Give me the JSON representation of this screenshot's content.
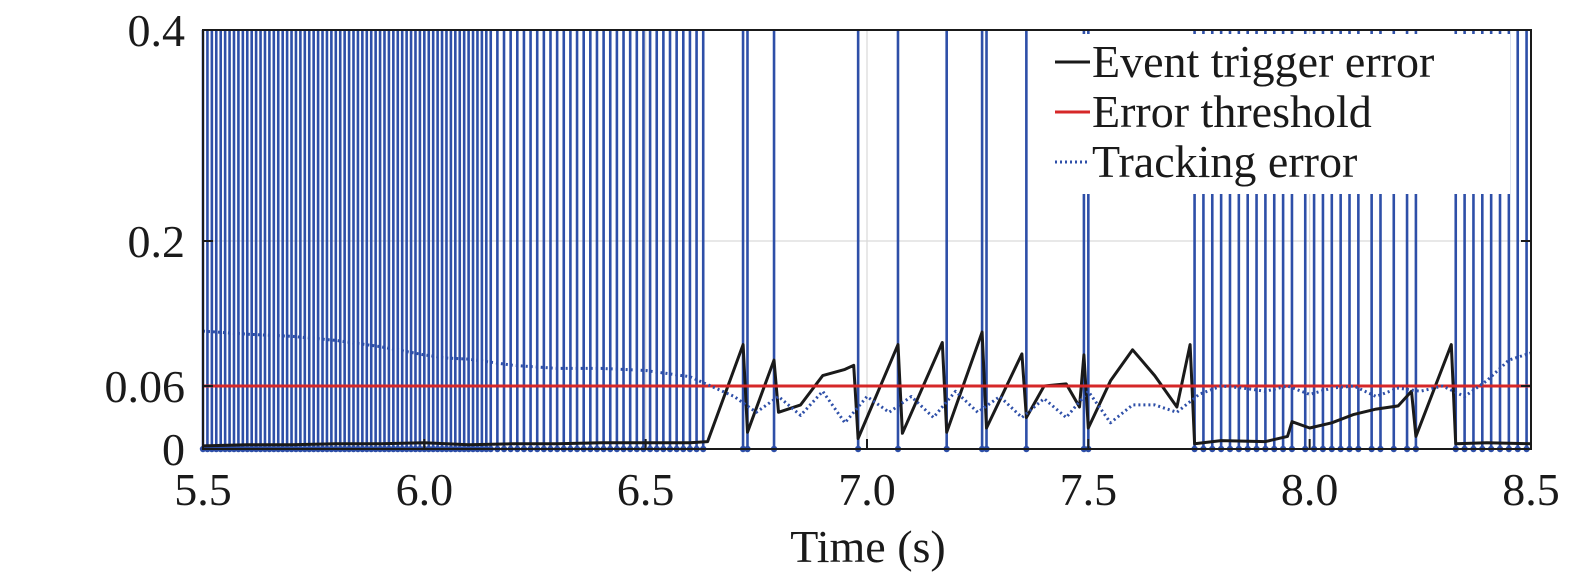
{
  "chart_data": {
    "type": "line",
    "title": "",
    "xlabel": "Time (s)",
    "ylabel": "",
    "xlim": [
      5.5,
      8.5
    ],
    "ylim": [
      0,
      0.4
    ],
    "x_ticks": [
      5.5,
      6.0,
      6.5,
      7.0,
      7.5,
      8.0,
      8.5
    ],
    "x_tick_labels": [
      "5.5",
      "6.0",
      "6.5",
      "7.0",
      "7.5",
      "8.0",
      "8.5"
    ],
    "y_ticks": [
      0,
      0.06,
      0.2,
      0.4
    ],
    "y_tick_labels": [
      "0",
      "0.06",
      "0.2",
      "0.4"
    ],
    "y_scale": "piecewise-linear",
    "grid": true,
    "legend": {
      "position": "top-right",
      "entries": [
        "Event trigger error",
        "Error threshold",
        "Tracking error"
      ]
    },
    "series": [
      {
        "name": "Event trigger error",
        "color": "#1a1a1a",
        "style": "solid",
        "x": [
          5.5,
          5.6,
          5.7,
          5.8,
          5.9,
          6.0,
          6.1,
          6.2,
          6.3,
          6.4,
          6.5,
          6.6,
          6.64,
          6.72,
          6.73,
          6.79,
          6.8,
          6.85,
          6.9,
          6.95,
          6.97,
          6.98,
          7.07,
          7.08,
          7.17,
          7.18,
          7.26,
          7.27,
          7.35,
          7.36,
          7.4,
          7.45,
          7.48,
          7.49,
          7.5,
          7.55,
          7.6,
          7.65,
          7.7,
          7.73,
          7.74,
          7.8,
          7.9,
          7.95,
          7.96,
          8.0,
          8.05,
          8.1,
          8.15,
          8.2,
          8.23,
          8.24,
          8.32,
          8.33,
          8.4,
          8.5
        ],
        "y": [
          0.003,
          0.004,
          0.004,
          0.005,
          0.005,
          0.006,
          0.004,
          0.005,
          0.005,
          0.006,
          0.006,
          0.006,
          0.007,
          0.1,
          0.016,
          0.085,
          0.035,
          0.042,
          0.07,
          0.076,
          0.08,
          0.01,
          0.1,
          0.015,
          0.102,
          0.016,
          0.112,
          0.02,
          0.091,
          0.03,
          0.06,
          0.062,
          0.04,
          0.09,
          0.02,
          0.065,
          0.095,
          0.07,
          0.04,
          0.1,
          0.005,
          0.008,
          0.007,
          0.012,
          0.026,
          0.02,
          0.025,
          0.033,
          0.038,
          0.041,
          0.055,
          0.012,
          0.1,
          0.005,
          0.006,
          0.005
        ]
      },
      {
        "name": "Error threshold",
        "color": "#d62728",
        "style": "solid",
        "x": [
          5.5,
          8.5
        ],
        "y": [
          0.06,
          0.06
        ]
      },
      {
        "name": "Tracking error",
        "color": "#2e4fa8",
        "style": "dotted",
        "x": [
          5.5,
          5.6,
          5.7,
          5.8,
          5.9,
          6.0,
          6.05,
          6.1,
          6.2,
          6.3,
          6.4,
          6.5,
          6.6,
          6.7,
          6.75,
          6.8,
          6.85,
          6.9,
          6.95,
          7.0,
          7.05,
          7.1,
          7.15,
          7.2,
          7.25,
          7.3,
          7.35,
          7.4,
          7.45,
          7.5,
          7.55,
          7.6,
          7.65,
          7.7,
          7.75,
          7.8,
          7.85,
          7.9,
          7.95,
          8.0,
          8.05,
          8.1,
          8.15,
          8.2,
          8.25,
          8.3,
          8.35,
          8.4,
          8.45,
          8.5
        ],
        "y": [
          0.113,
          0.11,
          0.108,
          0.104,
          0.098,
          0.09,
          0.087,
          0.086,
          0.08,
          0.077,
          0.077,
          0.075,
          0.069,
          0.05,
          0.035,
          0.05,
          0.032,
          0.055,
          0.025,
          0.05,
          0.035,
          0.05,
          0.03,
          0.055,
          0.035,
          0.05,
          0.03,
          0.048,
          0.03,
          0.055,
          0.025,
          0.042,
          0.042,
          0.035,
          0.052,
          0.06,
          0.058,
          0.055,
          0.06,
          0.052,
          0.058,
          0.06,
          0.05,
          0.058,
          0.055,
          0.06,
          0.05,
          0.065,
          0.085,
          0.092
        ]
      }
    ],
    "event_markers": {
      "color": "#2e4fa8",
      "x": [
        5.5,
        5.51,
        5.52,
        5.53,
        5.54,
        5.55,
        5.56,
        5.57,
        5.58,
        5.59,
        5.6,
        5.61,
        5.62,
        5.63,
        5.64,
        5.65,
        5.66,
        5.67,
        5.68,
        5.69,
        5.7,
        5.71,
        5.72,
        5.73,
        5.74,
        5.75,
        5.76,
        5.77,
        5.78,
        5.79,
        5.8,
        5.81,
        5.82,
        5.83,
        5.84,
        5.85,
        5.86,
        5.87,
        5.88,
        5.89,
        5.9,
        5.91,
        5.92,
        5.93,
        5.94,
        5.95,
        5.96,
        5.97,
        5.98,
        5.99,
        6.0,
        6.01,
        6.02,
        6.03,
        6.04,
        6.05,
        6.06,
        6.07,
        6.08,
        6.09,
        6.1,
        6.11,
        6.12,
        6.13,
        6.14,
        6.15,
        6.165,
        6.18,
        6.195,
        6.21,
        6.225,
        6.24,
        6.255,
        6.27,
        6.285,
        6.3,
        6.315,
        6.33,
        6.345,
        6.36,
        6.375,
        6.39,
        6.405,
        6.42,
        6.435,
        6.45,
        6.465,
        6.48,
        6.495,
        6.51,
        6.525,
        6.54,
        6.555,
        6.57,
        6.585,
        6.6,
        6.615,
        6.63,
        6.72,
        6.73,
        6.79,
        6.98,
        7.07,
        7.18,
        7.26,
        7.27,
        7.36,
        7.49,
        7.5,
        7.74,
        7.76,
        7.78,
        7.8,
        7.82,
        7.84,
        7.86,
        7.88,
        7.9,
        7.92,
        7.94,
        7.96,
        7.99,
        8.01,
        8.03,
        8.05,
        8.07,
        8.09,
        8.11,
        8.14,
        8.16,
        8.19,
        8.22,
        8.24,
        8.33,
        8.35,
        8.37,
        8.39,
        8.41,
        8.43,
        8.45,
        8.47,
        8.49
      ]
    }
  }
}
